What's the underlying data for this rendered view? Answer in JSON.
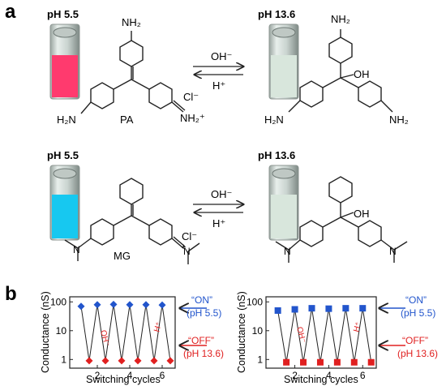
{
  "panels": {
    "a": "a",
    "b": "b"
  },
  "reactions": [
    {
      "left": {
        "ph": "pH 5.5",
        "vial_color": "#ff3a6e",
        "name": "PA",
        "counterion": "Cl⁻",
        "left_amine": "H₂N",
        "top_amine": "NH₂",
        "right_group": "NH₂⁺"
      },
      "right": {
        "ph": "pH 13.6",
        "vial_color": "#d8e6dc",
        "oh": "OH",
        "top_amine": "NH₂",
        "left_amine": "H₂N",
        "right_amine": "NH₂"
      },
      "forward": "OH⁻",
      "reverse": "H⁺"
    },
    {
      "left": {
        "ph": "pH 5.5",
        "vial_color": "#17c8f0",
        "name": "MG",
        "counterion": "Cl⁻",
        "plus": "+"
      },
      "right": {
        "ph": "pH 13.6",
        "vial_color": "#d8e6dc",
        "oh": "OH"
      },
      "forward": "OH⁻",
      "reverse": "H⁺"
    }
  ],
  "annotations": {
    "on": "“ON”",
    "on_ph": "(pH 5.5)",
    "off": "“OFF”",
    "off_ph": "(pH 13.6)",
    "oh_label": "OH⁻",
    "h_label": "H⁺"
  },
  "colors": {
    "on": "#2255cc",
    "off": "#e02020",
    "line": "#222222"
  },
  "chart_data": [
    {
      "type": "line",
      "xlabel": "Switching cycles",
      "ylabel": "Conductance (nS)",
      "log_y": true,
      "ylim": [
        0.5,
        150
      ],
      "xlim": [
        0.3,
        6.8
      ],
      "xticks": [
        2,
        4,
        6
      ],
      "yticks": [
        1,
        10,
        100
      ],
      "yticklabels": [
        "1",
        "10",
        "100"
      ],
      "marker": "diamond",
      "x": [
        1,
        1.5,
        2,
        2.5,
        3,
        3.5,
        4,
        4.5,
        5,
        5.5,
        6,
        6.5
      ],
      "y": [
        70,
        0.9,
        80,
        0.9,
        82,
        0.9,
        80,
        0.9,
        80,
        0.9,
        78,
        0.9
      ],
      "on_x": [
        1,
        2,
        3,
        4,
        5,
        6
      ],
      "on_y": [
        70,
        80,
        82,
        80,
        80,
        78
      ],
      "off_x": [
        1.5,
        2.5,
        3.5,
        4.5,
        5.5,
        6.5
      ],
      "off_y": [
        0.9,
        0.9,
        0.9,
        0.9,
        0.9,
        0.9
      ]
    },
    {
      "type": "line",
      "xlabel": "Switching cycles",
      "ylabel": "Conductance (nS)",
      "log_y": true,
      "ylim": [
        0.5,
        150
      ],
      "xlim": [
        0.3,
        6.8
      ],
      "xticks": [
        2,
        4,
        6
      ],
      "yticks": [
        1,
        10,
        100
      ],
      "yticklabels": [
        "1",
        "10",
        "100"
      ],
      "marker": "square",
      "x": [
        1,
        1.5,
        2,
        2.5,
        3,
        3.5,
        4,
        4.5,
        5,
        5.5,
        6,
        6.5
      ],
      "y": [
        50,
        0.8,
        55,
        0.8,
        60,
        0.8,
        58,
        0.8,
        60,
        0.8,
        60,
        0.8
      ],
      "on_x": [
        1,
        2,
        3,
        4,
        5,
        6
      ],
      "on_y": [
        50,
        55,
        60,
        58,
        60,
        60
      ],
      "off_x": [
        1.5,
        2.5,
        3.5,
        4.5,
        5.5,
        6.5
      ],
      "off_y": [
        0.8,
        0.8,
        0.8,
        0.8,
        0.8,
        0.8
      ]
    }
  ]
}
